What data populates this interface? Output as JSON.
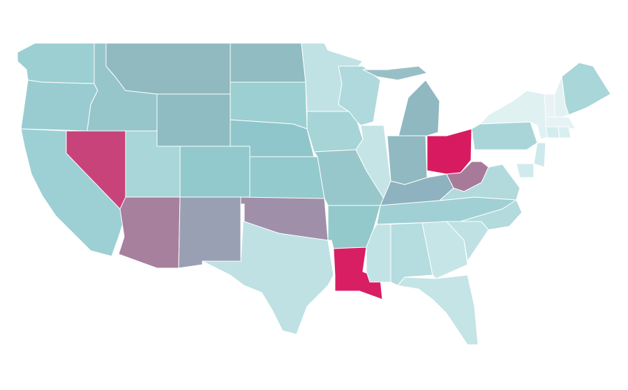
{
  "map": {
    "regions": [
      {
        "color": "#9bcfd2"
      },
      {
        "color": "#99ccd0"
      },
      {
        "color": "#9dd0d4"
      },
      {
        "color": "#c8437a"
      },
      {
        "color": "#96c6ca"
      },
      {
        "color": "#90b9c0"
      },
      {
        "color": "#8fbcc2"
      },
      {
        "color": "#a9d6d8"
      },
      {
        "color": "#a7809d"
      },
      {
        "color": "#91c9cd"
      },
      {
        "color": "#9aa0b3"
      },
      {
        "color": "#90bcc2"
      },
      {
        "color": "#9ccfd2"
      },
      {
        "color": "#8fc6cb"
      },
      {
        "color": "#93cacd"
      },
      {
        "color": "#a08fa8"
      },
      {
        "color": "#bfe1e4"
      },
      {
        "color": "#c1e2e5"
      },
      {
        "color": "#a6d4d7"
      },
      {
        "color": "#98c7cb"
      },
      {
        "color": "#94c9cc"
      },
      {
        "color": "#d81f63"
      },
      {
        "color": "#afd9dc"
      },
      {
        "color": "#c5e4e6"
      },
      {
        "color": "#90b8c1"
      },
      {
        "color": "#98bfc5"
      },
      {
        "color": "#91b9c1"
      },
      {
        "color": "#d81b60"
      },
      {
        "color": "#8fb2c0"
      },
      {
        "color": "#a0d0d3"
      },
      {
        "color": "#c2e3e6"
      },
      {
        "color": "#b5dcdf"
      },
      {
        "color": "#c6e5e7"
      },
      {
        "color": "#c4e4e6"
      },
      {
        "color": "#bfe1e4"
      },
      {
        "color": "#b3dadd"
      },
      {
        "color": "#b2dadc"
      },
      {
        "color": "#d1ebed"
      },
      {
        "color": "#a87a9a"
      },
      {
        "color": "#a9d5d8"
      },
      {
        "color": "#e0f1f2"
      },
      {
        "color": "#eaf3f4"
      },
      {
        "color": "#cde9eb"
      },
      {
        "color": "#a9d6d8"
      },
      {
        "color": "#e2f2f3"
      },
      {
        "color": "#e6f3f4"
      },
      {
        "color": "#d4ecee"
      },
      {
        "color": "#d8eef0"
      }
    ]
  }
}
